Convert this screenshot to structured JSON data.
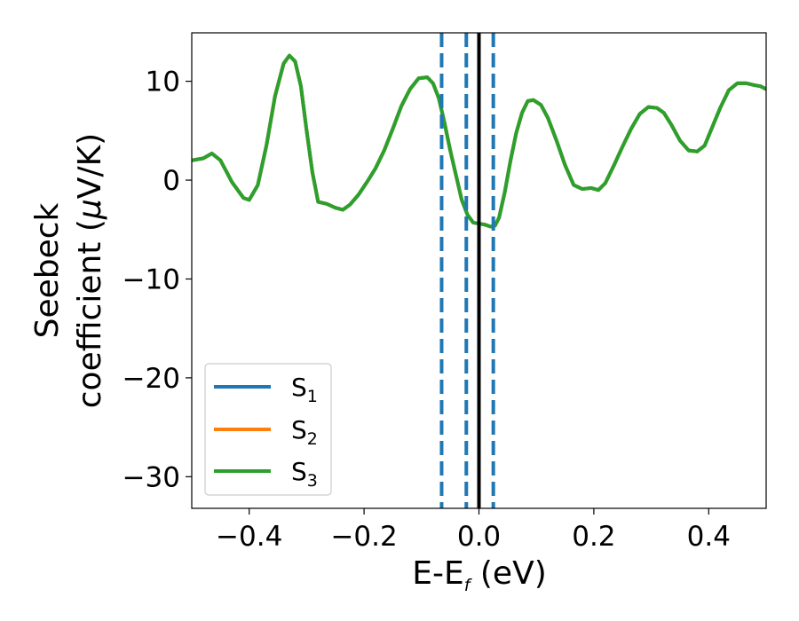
{
  "chart_data": {
    "type": "line",
    "title": "",
    "xlabel": {
      "main": "E-E",
      "sub": "f",
      "suffix": " (eV)"
    },
    "ylabel": {
      "line1": "Seebeck",
      "line2_prefix": "coefficient  (",
      "line2_mu": "μ",
      "line2_suffix": "V/K)"
    },
    "xlim": [
      -0.5,
      0.5
    ],
    "ylim": [
      -33.2,
      14.9
    ],
    "xticks": [
      -0.4,
      -0.2,
      0.0,
      0.2,
      0.4
    ],
    "xtick_labels": [
      "−0.4",
      "−0.2",
      "0.0",
      "0.2",
      "0.4"
    ],
    "yticks": [
      -30,
      -20,
      -10,
      0,
      10
    ],
    "ytick_labels": [
      "−30",
      "−20",
      "−10",
      "0",
      "10"
    ],
    "grid": false,
    "legend_placement": "lower-left",
    "series": [
      {
        "name_main": "S",
        "name_sub": "1",
        "color": "#1f77b4",
        "x": [
          -0.5,
          -0.48,
          -0.465,
          -0.45,
          -0.43,
          -0.41,
          -0.4,
          -0.385,
          -0.37,
          -0.355,
          -0.34,
          -0.33,
          -0.32,
          -0.31,
          -0.3,
          -0.29,
          -0.28,
          -0.265,
          -0.25,
          -0.237,
          -0.225,
          -0.21,
          -0.195,
          -0.18,
          -0.165,
          -0.15,
          -0.135,
          -0.12,
          -0.105,
          -0.09,
          -0.08,
          -0.07,
          -0.06,
          -0.05,
          -0.04,
          -0.03,
          -0.02,
          -0.01,
          0.0,
          0.01,
          0.02,
          0.028,
          0.035,
          0.045,
          0.055,
          0.065,
          0.075,
          0.085,
          0.095,
          0.108,
          0.12,
          0.135,
          0.15,
          0.165,
          0.18,
          0.195,
          0.208,
          0.22,
          0.235,
          0.25,
          0.265,
          0.28,
          0.295,
          0.31,
          0.322,
          0.335,
          0.35,
          0.365,
          0.38,
          0.393,
          0.405,
          0.42,
          0.435,
          0.45,
          0.465,
          0.48,
          0.49,
          0.5
        ],
        "y": [
          2.0,
          2.2,
          2.7,
          2.0,
          -0.2,
          -1.8,
          -2.0,
          -0.5,
          3.5,
          8.5,
          11.8,
          12.6,
          12.0,
          9.5,
          5.0,
          0.8,
          -2.2,
          -2.4,
          -2.8,
          -3.0,
          -2.5,
          -1.5,
          -0.2,
          1.2,
          3.0,
          5.2,
          7.5,
          9.2,
          10.3,
          10.4,
          9.8,
          8.3,
          5.8,
          3.0,
          0.5,
          -2.0,
          -3.5,
          -4.3,
          -4.4,
          -4.5,
          -4.7,
          -4.6,
          -3.8,
          -1.2,
          2.0,
          4.8,
          6.8,
          8.0,
          8.1,
          7.6,
          6.3,
          4.0,
          1.5,
          -0.5,
          -0.9,
          -0.8,
          -1.0,
          -0.3,
          1.5,
          3.4,
          5.2,
          6.7,
          7.4,
          7.3,
          6.8,
          5.6,
          4.0,
          3.0,
          2.9,
          3.5,
          5.2,
          7.3,
          9.1,
          9.8,
          9.8,
          9.6,
          9.5,
          9.2
        ]
      },
      {
        "name_main": "S",
        "name_sub": "2",
        "color": "#ff7f0e",
        "x": [
          -0.5,
          -0.48,
          -0.465,
          -0.45,
          -0.43,
          -0.41,
          -0.4,
          -0.385,
          -0.37,
          -0.355,
          -0.34,
          -0.33,
          -0.32,
          -0.31,
          -0.3,
          -0.29,
          -0.28,
          -0.265,
          -0.25,
          -0.237,
          -0.225,
          -0.21,
          -0.195,
          -0.18,
          -0.165,
          -0.15,
          -0.135,
          -0.12,
          -0.105,
          -0.09,
          -0.08,
          -0.07,
          -0.06,
          -0.05,
          -0.04,
          -0.03,
          -0.02,
          -0.01,
          0.0,
          0.01,
          0.02,
          0.028,
          0.035,
          0.045,
          0.055,
          0.065,
          0.075,
          0.085,
          0.095,
          0.108,
          0.12,
          0.135,
          0.15,
          0.165,
          0.18,
          0.195,
          0.208,
          0.22,
          0.235,
          0.25,
          0.265,
          0.28,
          0.295,
          0.31,
          0.322,
          0.335,
          0.35,
          0.365,
          0.38,
          0.393,
          0.405,
          0.42,
          0.435,
          0.45,
          0.465,
          0.48,
          0.49,
          0.5
        ],
        "y": [
          2.0,
          2.2,
          2.7,
          2.0,
          -0.2,
          -1.8,
          -2.0,
          -0.5,
          3.5,
          8.5,
          11.8,
          12.6,
          12.0,
          9.5,
          5.0,
          0.8,
          -2.2,
          -2.4,
          -2.8,
          -3.0,
          -2.5,
          -1.5,
          -0.2,
          1.2,
          3.0,
          5.2,
          7.5,
          9.2,
          10.3,
          10.4,
          9.8,
          8.3,
          5.8,
          3.0,
          0.5,
          -2.0,
          -3.5,
          -4.3,
          -4.4,
          -4.5,
          -4.7,
          -4.6,
          -3.8,
          -1.2,
          2.0,
          4.8,
          6.8,
          8.0,
          8.1,
          7.6,
          6.3,
          4.0,
          1.5,
          -0.5,
          -0.9,
          -0.8,
          -1.0,
          -0.3,
          1.5,
          3.4,
          5.2,
          6.7,
          7.4,
          7.3,
          6.8,
          5.6,
          4.0,
          3.0,
          2.9,
          3.5,
          5.2,
          7.3,
          9.1,
          9.8,
          9.8,
          9.6,
          9.5,
          9.2
        ]
      },
      {
        "name_main": "S",
        "name_sub": "3",
        "color": "#2ca02c",
        "x": [
          -0.5,
          -0.48,
          -0.465,
          -0.45,
          -0.43,
          -0.41,
          -0.4,
          -0.385,
          -0.37,
          -0.355,
          -0.34,
          -0.33,
          -0.32,
          -0.31,
          -0.3,
          -0.29,
          -0.28,
          -0.265,
          -0.25,
          -0.237,
          -0.225,
          -0.21,
          -0.195,
          -0.18,
          -0.165,
          -0.15,
          -0.135,
          -0.12,
          -0.105,
          -0.09,
          -0.08,
          -0.07,
          -0.06,
          -0.05,
          -0.04,
          -0.03,
          -0.02,
          -0.01,
          0.0,
          0.01,
          0.02,
          0.028,
          0.035,
          0.045,
          0.055,
          0.065,
          0.075,
          0.085,
          0.095,
          0.108,
          0.12,
          0.135,
          0.15,
          0.165,
          0.18,
          0.195,
          0.208,
          0.22,
          0.235,
          0.25,
          0.265,
          0.28,
          0.295,
          0.31,
          0.322,
          0.335,
          0.35,
          0.365,
          0.38,
          0.393,
          0.405,
          0.42,
          0.435,
          0.45,
          0.465,
          0.48,
          0.49,
          0.5
        ],
        "y": [
          2.0,
          2.2,
          2.7,
          2.0,
          -0.2,
          -1.8,
          -2.0,
          -0.5,
          3.5,
          8.5,
          11.8,
          12.6,
          12.0,
          9.5,
          5.0,
          0.8,
          -2.2,
          -2.4,
          -2.8,
          -3.0,
          -2.5,
          -1.5,
          -0.2,
          1.2,
          3.0,
          5.2,
          7.5,
          9.2,
          10.3,
          10.4,
          9.8,
          8.3,
          5.8,
          3.0,
          0.5,
          -2.0,
          -3.5,
          -4.3,
          -4.4,
          -4.5,
          -4.7,
          -4.6,
          -3.8,
          -1.2,
          2.0,
          4.8,
          6.8,
          8.0,
          8.1,
          7.6,
          6.3,
          4.0,
          1.5,
          -0.5,
          -0.9,
          -0.8,
          -1.0,
          -0.3,
          1.5,
          3.4,
          5.2,
          6.7,
          7.4,
          7.3,
          6.8,
          5.6,
          4.0,
          3.0,
          2.9,
          3.5,
          5.2,
          7.3,
          9.1,
          9.8,
          9.8,
          9.6,
          9.5,
          9.2
        ]
      }
    ],
    "vlines": [
      {
        "x": 0.0,
        "color": "#000000",
        "style": "solid"
      },
      {
        "x": -0.065,
        "color": "#1f77b4",
        "style": "dashed"
      },
      {
        "x": -0.022,
        "color": "#1f77b4",
        "style": "dashed"
      },
      {
        "x": 0.025,
        "color": "#1f77b4",
        "style": "dashed"
      }
    ]
  }
}
